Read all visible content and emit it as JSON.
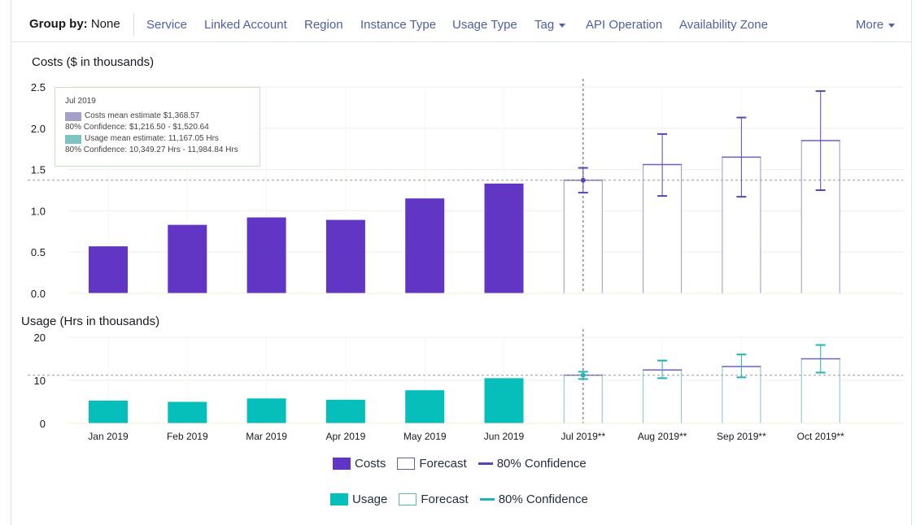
{
  "group_by": {
    "label": "Group by:",
    "value": "None",
    "options": [
      "Service",
      "Linked Account",
      "Region",
      "Instance Type",
      "Usage Type",
      "Tag",
      "API Operation",
      "Availability Zone"
    ],
    "more_label": "More"
  },
  "colors": {
    "costs": "#6236c5",
    "usage": "#06bfbb",
    "confidence_costs": "#5b44b6",
    "confidence_usage": "#1fb3b3",
    "forecast_cost_border": "#a58fce",
    "forecast_usage_border": "#7cc7c3",
    "grid": "#f0eee6"
  },
  "tooltip": {
    "month": "Jul 2019",
    "costs_line": "Costs mean estimate $1,368.57",
    "costs_conf": "80% Confidence: $1,216.50 - $1,520.64",
    "usage_line": "Usage mean estimate: 11,167.05 Hrs",
    "usage_conf": "80% Confidence: 10,349.27 Hrs - 11,984.84 Hrs"
  },
  "chart_data": [
    {
      "type": "bar",
      "title": "Costs ($ in thousands)",
      "categories": [
        "Jan 2019",
        "Feb 2019",
        "Mar 2019",
        "Apr 2019",
        "May 2019",
        "Jun 2019",
        "Jul 2019**",
        "Aug 2019**",
        "Sep 2019**",
        "Oct 2019**"
      ],
      "series": [
        {
          "name": "Costs",
          "values": [
            0.57,
            0.83,
            0.92,
            0.89,
            1.15,
            1.33,
            null,
            null,
            null,
            null
          ]
        },
        {
          "name": "Forecast",
          "values": [
            null,
            null,
            null,
            null,
            null,
            null,
            1.37,
            1.56,
            1.65,
            1.85
          ]
        }
      ],
      "confidence_80": [
        null,
        null,
        null,
        null,
        null,
        null,
        [
          1.22,
          1.52
        ],
        [
          1.18,
          1.93
        ],
        [
          1.17,
          2.13
        ],
        [
          1.25,
          2.45
        ]
      ],
      "yticks": [
        "0.0",
        "0.5",
        "1.0",
        "1.5",
        "2.0",
        "2.5"
      ],
      "ylim": [
        0,
        2.6
      ],
      "reference_line": 1.37,
      "legend": [
        "Costs",
        "Forecast",
        "80% Confidence"
      ]
    },
    {
      "type": "bar",
      "title": "Usage (Hrs in thousands)",
      "categories": [
        "Jan 2019",
        "Feb 2019",
        "Mar 2019",
        "Apr 2019",
        "May 2019",
        "Jun 2019",
        "Jul 2019**",
        "Aug 2019**",
        "Sep 2019**",
        "Oct 2019**"
      ],
      "series": [
        {
          "name": "Usage",
          "values": [
            5.3,
            5.0,
            5.8,
            5.5,
            7.7,
            10.5,
            null,
            null,
            null,
            null
          ]
        },
        {
          "name": "Forecast",
          "values": [
            null,
            null,
            null,
            null,
            null,
            null,
            11.2,
            12.4,
            13.2,
            15.0
          ]
        }
      ],
      "confidence_80": [
        null,
        null,
        null,
        null,
        null,
        null,
        [
          10.3,
          12.0
        ],
        [
          10.5,
          14.6
        ],
        [
          10.7,
          16.0
        ],
        [
          11.8,
          18.2
        ]
      ],
      "yticks": [
        "0",
        "10",
        "20"
      ],
      "ylim": [
        0,
        20
      ],
      "reference_line": 11.17,
      "legend": [
        "Usage",
        "Forecast",
        "80% Confidence"
      ]
    }
  ]
}
